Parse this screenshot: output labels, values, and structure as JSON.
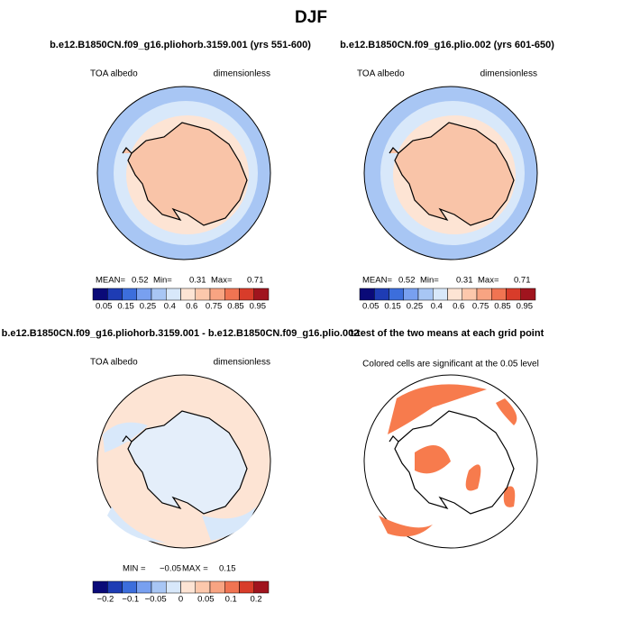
{
  "title": "DJF",
  "panels": [
    {
      "title": "b.e12.B1850CN.f09_g16.pliohorb.3159.001 (yrs 551-600)",
      "left_label": "TOA albedo",
      "right_label": "dimensionless",
      "stats": [
        "MEAN=",
        "0.52",
        "Min=",
        "0.31",
        "Max=",
        "0.71"
      ],
      "colorbar": {
        "colors": [
          "#0a0a78",
          "#1e3cb4",
          "#3c6edc",
          "#78a0f0",
          "#a8c6f4",
          "#d8e8fa",
          "#fde4d4",
          "#fcc8ac",
          "#f8a482",
          "#f07452",
          "#d83c2a",
          "#a0141e"
        ],
        "labels": [
          "0.05",
          "0.15",
          "0.25",
          "0.4",
          "0.6",
          "0.75",
          "0.85",
          "0.95"
        ]
      }
    },
    {
      "title": "b.e12.B1850CN.f09_g16.plio.002 (yrs 601-650)",
      "left_label": "TOA albedo",
      "right_label": "dimensionless",
      "stats": [
        "MEAN=",
        "0.52",
        "Min=",
        "0.31",
        "Max=",
        "0.71"
      ],
      "colorbar": {
        "colors": [
          "#0a0a78",
          "#1e3cb4",
          "#3c6edc",
          "#78a0f0",
          "#a8c6f4",
          "#d8e8fa",
          "#fde4d4",
          "#fcc8ac",
          "#f8a482",
          "#f07452",
          "#d83c2a",
          "#a0141e"
        ],
        "labels": [
          "0.05",
          "0.15",
          "0.25",
          "0.4",
          "0.6",
          "0.75",
          "0.85",
          "0.95"
        ]
      }
    },
    {
      "title": "b.e12.B1850CN.f09_g16.pliohorb.3159.001 - b.e12.B1850CN.f09_g16.plio.002",
      "left_label": "TOA albedo",
      "right_label": "dimensionless",
      "stats": [
        "MIN =",
        "−0.05",
        "MAX =",
        "0.15"
      ],
      "colorbar": {
        "colors": [
          "#0a0a78",
          "#1e3cb4",
          "#3c6edc",
          "#78a0f0",
          "#a8c6f4",
          "#d8e8fa",
          "#fde4d4",
          "#fcc8ac",
          "#f8a482",
          "#f07452",
          "#d83c2a",
          "#a0141e"
        ],
        "labels": [
          "−0.2",
          "−0.1",
          "−0.05",
          "0",
          "0.05",
          "0.1",
          "0.2"
        ]
      }
    },
    {
      "title": "t-test of the two means at each grid point",
      "subtitle": "Colored cells are significant at the 0.05 level"
    }
  ]
}
